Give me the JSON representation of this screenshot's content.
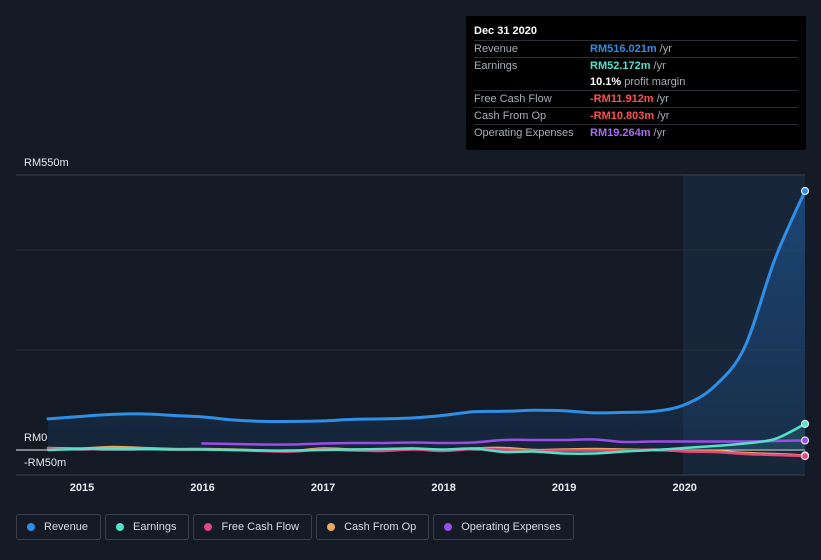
{
  "chart_data": {
    "type": "line",
    "x": [
      "2014.75",
      "2015.0",
      "2015.25",
      "2015.5",
      "2015.75",
      "2016.0",
      "2016.25",
      "2016.5",
      "2016.75",
      "2017.0",
      "2017.25",
      "2017.5",
      "2017.75",
      "2018.0",
      "2018.25",
      "2018.5",
      "2018.75",
      "2019.0",
      "2019.25",
      "2019.5",
      "2019.75",
      "2020.0",
      "2020.25",
      "2020.5",
      "2020.75",
      "2021.0"
    ],
    "x_ticks": [
      "2015",
      "2016",
      "2017",
      "2018",
      "2019",
      "2020"
    ],
    "y_ticks": [
      "RM550m",
      "RM0",
      "-RM50m"
    ],
    "ylim": [
      -50,
      550
    ],
    "xlim": [
      2014.75,
      2021.0
    ],
    "forecast_shade_from": 2020.0,
    "series": [
      {
        "name": "Revenue",
        "color": "#2f8fe6",
        "x": [
          2014.72,
          2015.0,
          2015.25,
          2015.5,
          2015.75,
          2016.0,
          2016.25,
          2016.5,
          2016.75,
          2017.0,
          2017.25,
          2017.5,
          2017.75,
          2018.0,
          2018.25,
          2018.5,
          2018.75,
          2019.0,
          2019.25,
          2019.5,
          2019.75,
          2020.0,
          2020.25,
          2020.5,
          2020.75,
          2021.0
        ],
        "values": [
          62,
          67,
          71,
          72,
          69,
          66,
          60,
          57,
          57,
          58,
          61,
          62,
          64,
          69,
          76,
          77,
          79,
          78,
          74,
          75,
          77,
          90,
          127,
          205,
          380,
          516
        ]
      },
      {
        "name": "Earnings",
        "color": "#52e1c9",
        "x": [
          2014.72,
          2015.0,
          2015.25,
          2015.5,
          2015.75,
          2016.0,
          2016.25,
          2016.5,
          2016.75,
          2017.0,
          2017.25,
          2017.5,
          2017.75,
          2018.0,
          2018.25,
          2018.5,
          2018.75,
          2019.0,
          2019.25,
          2019.5,
          2019.75,
          2020.0,
          2020.25,
          2020.5,
          2020.75,
          2021.0
        ],
        "values": [
          0,
          2,
          3,
          2,
          1,
          1,
          0,
          -1,
          -1,
          0,
          1,
          2,
          3,
          1,
          3,
          -4,
          -3,
          -7,
          -7,
          -3,
          0,
          4,
          8,
          13,
          22,
          52
        ]
      },
      {
        "name": "Free Cash Flow",
        "color": "#e0487e",
        "x": [
          2014.72,
          2015.0,
          2015.25,
          2015.5,
          2015.75,
          2016.0,
          2016.25,
          2016.5,
          2016.75,
          2017.0,
          2017.25,
          2017.5,
          2017.75,
          2018.0,
          2018.25,
          2018.5,
          2018.75,
          2019.0,
          2019.25,
          2019.5,
          2019.75,
          2020.0,
          2020.25,
          2020.5,
          2020.75,
          2021.0
        ],
        "values": [
          3,
          1,
          3,
          2,
          1,
          1,
          0,
          -2,
          -3,
          1,
          -1,
          -2,
          1,
          -2,
          2,
          1,
          -2,
          -1,
          -1,
          -1,
          1,
          -3,
          -4,
          -8,
          -10,
          -12
        ]
      },
      {
        "name": "Cash From Op",
        "color": "#e8a95c",
        "x": [
          2014.72,
          2015.0,
          2015.25,
          2015.5,
          2015.75,
          2016.0,
          2016.25,
          2016.5,
          2016.75,
          2017.0,
          2017.25,
          2017.5,
          2017.75,
          2018.0,
          2018.25,
          2018.5,
          2018.75,
          2019.0,
          2019.25,
          2019.5,
          2019.75,
          2020.0,
          2020.25,
          2020.5,
          2020.75,
          2021.0
        ],
        "values": [
          4,
          3,
          6,
          4,
          2,
          2,
          1,
          -1,
          -2,
          3,
          1,
          1,
          3,
          -1,
          3,
          4,
          0,
          1,
          2,
          1,
          0,
          -2,
          -2,
          -6,
          -8,
          -11
        ]
      },
      {
        "name": "Operating Expenses",
        "color": "#9b4de6",
        "x": [
          2016.0,
          2016.25,
          2016.5,
          2016.75,
          2017.0,
          2017.25,
          2017.5,
          2017.75,
          2018.0,
          2018.25,
          2018.5,
          2018.75,
          2019.0,
          2019.25,
          2019.5,
          2019.75,
          2020.0,
          2020.25,
          2020.5,
          2020.75,
          2021.0
        ],
        "values": [
          13,
          12,
          11,
          11,
          13,
          14,
          14,
          15,
          14,
          15,
          20,
          20,
          20,
          21,
          16,
          17,
          17,
          17,
          17,
          18,
          19
        ]
      }
    ]
  },
  "tooltip": {
    "date": "Dec 31 2020",
    "rows": [
      {
        "label": "Revenue",
        "value": "RM516.021m",
        "unit": "/yr",
        "color": "#2f8fe6"
      },
      {
        "label": "Earnings",
        "value": "RM52.172m",
        "unit": "/yr",
        "color": "#52e1c9"
      },
      {
        "label": "",
        "value": "10.1%",
        "unit": "profit margin",
        "color": "#ffffff"
      },
      {
        "label": "Free Cash Flow",
        "value": "-RM11.912m",
        "unit": "/yr",
        "color": "#ff4f4f"
      },
      {
        "label": "Cash From Op",
        "value": "-RM10.803m",
        "unit": "/yr",
        "color": "#ff4f4f"
      },
      {
        "label": "Operating Expenses",
        "value": "RM19.264m",
        "unit": "/yr",
        "color": "#a96df0"
      }
    ]
  },
  "legend": [
    {
      "label": "Revenue",
      "color": "#2f8fe6"
    },
    {
      "label": "Earnings",
      "color": "#52e1c9"
    },
    {
      "label": "Free Cash Flow",
      "color": "#e0487e"
    },
    {
      "label": "Cash From Op",
      "color": "#e8a95c"
    },
    {
      "label": "Operating Expenses",
      "color": "#9b4de6"
    }
  ]
}
